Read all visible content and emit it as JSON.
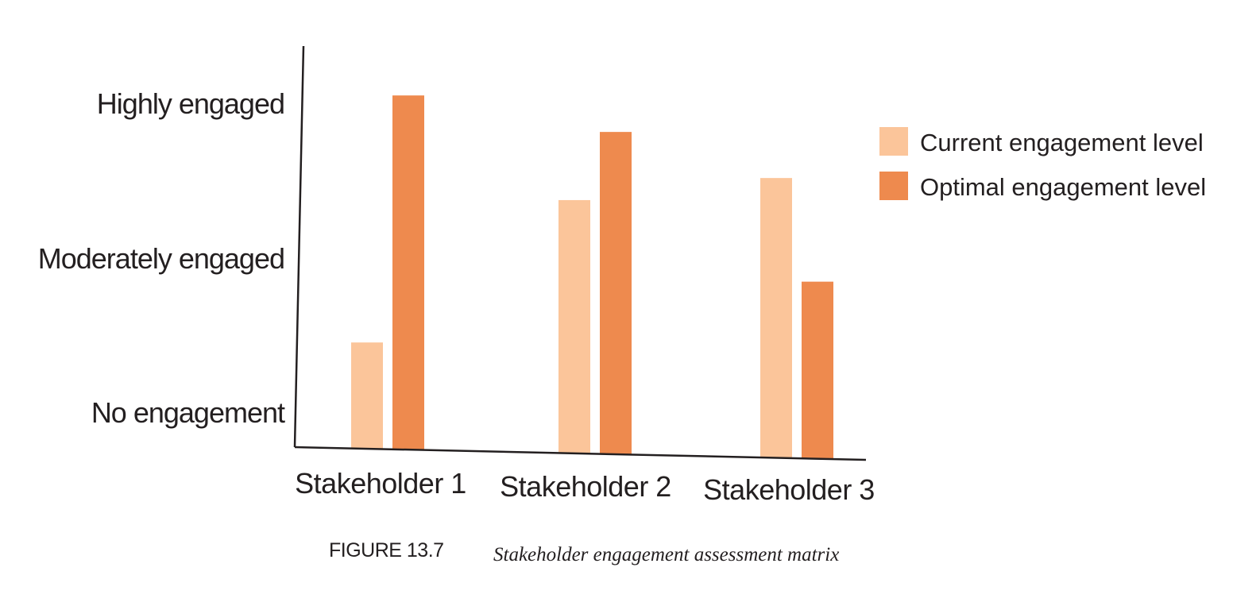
{
  "chart_data": {
    "type": "bar",
    "title": "",
    "xlabel": "",
    "ylabel": "",
    "categories": [
      "Stakeholder 1",
      "Stakeholder 2",
      "Stakeholder 3"
    ],
    "y_levels": [
      "No engagement",
      "Moderately engaged",
      "Highly engaged"
    ],
    "ylim": [
      0,
      2
    ],
    "series": [
      {
        "name": "Current engagement level",
        "values": [
          0.6,
          1.43,
          1.58
        ],
        "color": "#fbc59a"
      },
      {
        "name": "Optimal engagement level",
        "values": [
          2.0,
          1.82,
          1.0
        ],
        "color": "#ee8a4e"
      }
    ],
    "legend_position": "right",
    "grid": false
  },
  "caption": {
    "label": "FIGURE 13.7",
    "text": "Stakeholder engagement assessment matrix"
  }
}
